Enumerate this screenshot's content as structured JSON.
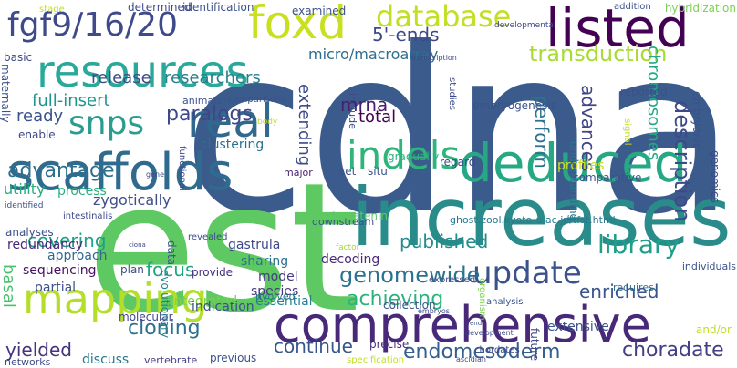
{
  "words": [
    {
      "text": "cdna",
      "color": "#3b5b8c"
    },
    {
      "text": "est",
      "color": "#5ec962"
    },
    {
      "text": "increases",
      "color": "#2a8c8a"
    },
    {
      "text": "comprehensive",
      "color": "#482878"
    },
    {
      "text": "scaffolds",
      "color": "#2f6b8e"
    },
    {
      "text": "deduced",
      "color": "#26a884"
    },
    {
      "text": "resources",
      "color": "#2aa99a"
    },
    {
      "text": "mapping",
      "color": "#b5de2b"
    },
    {
      "text": "listed",
      "color": "#440154"
    },
    {
      "text": "foxd",
      "color": "#c8e020"
    },
    {
      "text": "real",
      "color": "#31688e"
    },
    {
      "text": "fgf9/16/20",
      "color": "#3e4a89"
    },
    {
      "text": "update",
      "color": "#3b528b"
    },
    {
      "text": "indels",
      "color": "#2fb47c"
    },
    {
      "text": "snps",
      "color": "#2a9d8f"
    },
    {
      "text": "database",
      "color": "#c2df23"
    },
    {
      "text": "library",
      "color": "#1f9e89"
    },
    {
      "text": "genomewide",
      "color": "#2c728e"
    },
    {
      "text": "endomesoderm",
      "color": "#355f8d"
    },
    {
      "text": "achieving",
      "color": "#2db27d"
    },
    {
      "text": "description",
      "color": "#3e4989"
    },
    {
      "text": "choradate",
      "color": "#433e85"
    },
    {
      "text": "transduction",
      "color": "#a8db34"
    },
    {
      "text": "paralogs",
      "color": "#3f4788"
    },
    {
      "text": "advantage",
      "color": "#2e6f8e"
    },
    {
      "text": "published",
      "color": "#238a8d"
    },
    {
      "text": "cloning",
      "color": "#2d708e"
    },
    {
      "text": "enriched",
      "color": "#3a548c"
    },
    {
      "text": "continue",
      "color": "#39568c"
    },
    {
      "text": "covering",
      "color": "#1fa187"
    },
    {
      "text": "yielded",
      "color": "#46337f"
    },
    {
      "text": "full-insert",
      "color": "#1f968b"
    },
    {
      "text": "mrna",
      "color": "#481f70"
    },
    {
      "text": "ready",
      "color": "#3b528b"
    },
    {
      "text": "focus",
      "color": "#20a486"
    },
    {
      "text": "total",
      "color": "#440154"
    },
    {
      "text": "micro/macroarray",
      "color": "#2e6e8e"
    },
    {
      "text": "5'-ends",
      "color": "#3f4889"
    },
    {
      "text": "release",
      "color": "#3e4c8a"
    },
    {
      "text": "researchers",
      "color": "#277f8e"
    },
    {
      "text": "perform",
      "color": "#2c728e"
    },
    {
      "text": "advances",
      "color": "#414487"
    },
    {
      "text": "chromosomes",
      "color": "#22a884"
    },
    {
      "text": "extending",
      "color": "#3e4a89"
    },
    {
      "text": "basal",
      "color": "#4ac16d"
    },
    {
      "text": "zygotically",
      "color": "#3d4e8a"
    },
    {
      "text": "clustering",
      "color": "#2c728e"
    },
    {
      "text": "utility",
      "color": "#29af7f"
    },
    {
      "text": "process",
      "color": "#29af7f"
    },
    {
      "text": "sequencing",
      "color": "#471063"
    },
    {
      "text": "redundancy",
      "color": "#482576"
    },
    {
      "text": "approach",
      "color": "#31688e"
    },
    {
      "text": "analyses",
      "color": "#3b528b"
    },
    {
      "text": "partial",
      "color": "#3b518b"
    },
    {
      "text": "integrated",
      "color": "#7ad151"
    },
    {
      "text": "gastrula",
      "color": "#3e4989"
    },
    {
      "text": "sharing",
      "color": "#2c728e"
    },
    {
      "text": "decoding",
      "color": "#482878"
    },
    {
      "text": "model",
      "color": "#443983"
    },
    {
      "text": "species",
      "color": "#453781"
    },
    {
      "text": "essential",
      "color": "#26828e"
    },
    {
      "text": "involved",
      "color": "#2a788e"
    },
    {
      "text": "indication",
      "color": "#3d4d8a"
    },
    {
      "text": "plan",
      "color": "#3e4c8a"
    },
    {
      "text": "provide",
      "color": "#46307e"
    },
    {
      "text": "molecular",
      "color": "#3e4989"
    },
    {
      "text": "networks",
      "color": "#3e4989"
    },
    {
      "text": "discuss",
      "color": "#2a788e"
    },
    {
      "text": "vertebrate",
      "color": "#433e85"
    },
    {
      "text": "previous",
      "color": "#3b528b"
    },
    {
      "text": "precise",
      "color": "#472d7b"
    },
    {
      "text": "specification",
      "color": "#c2df23"
    },
    {
      "text": "ascidian",
      "color": "#3e4989"
    },
    {
      "text": "extensive",
      "color": "#3b528b"
    },
    {
      "text": "collection",
      "color": "#3b528b"
    },
    {
      "text": "requires",
      "color": "#2d708e"
    },
    {
      "text": "analysis",
      "color": "#3b528b"
    },
    {
      "text": "embryos",
      "color": "#3e4c8a"
    },
    {
      "text": "expressed",
      "color": "#3e4989"
    },
    {
      "text": "downstream",
      "color": "#3b528b"
    },
    {
      "text": "factor",
      "color": "#a0da39"
    },
    {
      "text": "beta-catenin",
      "color": "#5ec962"
    },
    {
      "text": "ghost.zool.kyoto-u.ac.jp/tfst.html",
      "color": "#2a788e"
    },
    {
      "text": "revealed",
      "color": "#3e4989"
    },
    {
      "text": "data",
      "color": "#3b528b"
    },
    {
      "text": "intestinalis",
      "color": "#3e4c8a"
    },
    {
      "text": "ciona",
      "color": "#3e4989"
    },
    {
      "text": "evolutionary",
      "color": "#26828e"
    },
    {
      "text": "functional",
      "color": "#3e4989"
    },
    {
      "text": "major",
      "color": "#481f70"
    },
    {
      "text": "set",
      "color": "#3b528b"
    },
    {
      "text": "situ",
      "color": "#3b528b"
    },
    {
      "text": "regard",
      "color": "#3e4989"
    },
    {
      "text": "profiles",
      "color": "#c8e020"
    },
    {
      "text": "comparative",
      "color": "#3b528b"
    },
    {
      "text": "enable",
      "color": "#3e4989"
    },
    {
      "text": "genomics",
      "color": "#3e4989"
    },
    {
      "text": "embryonic",
      "color": "#3b528b"
    },
    {
      "text": "reported",
      "color": "#3b528b"
    },
    {
      "text": "understanding",
      "color": "#2c728e"
    },
    {
      "text": "signal",
      "color": "#c2df23"
    },
    {
      "text": "organism",
      "color": "#7ad151"
    },
    {
      "text": "chordates",
      "color": "#3e4989"
    },
    {
      "text": "individuals",
      "color": "#3b528b"
    },
    {
      "text": "and/or",
      "color": "#c2df23"
    },
    {
      "text": "future",
      "color": "#3e4989"
    },
    {
      "text": "embryogenesis",
      "color": "#3b528b"
    },
    {
      "text": "gradually",
      "color": "#2db27d"
    },
    {
      "text": "studies",
      "color": "#3e4989"
    },
    {
      "text": "transcription",
      "color": "#3e4989"
    },
    {
      "text": "developmental",
      "color": "#3e4989"
    },
    {
      "text": "addition",
      "color": "#3b528b"
    },
    {
      "text": "hybridization",
      "color": "#7ad151"
    },
    {
      "text": "identification",
      "color": "#3b528b"
    },
    {
      "text": "determined",
      "color": "#3e4989"
    },
    {
      "text": "examined",
      "color": "#3b528b"
    },
    {
      "text": "stage",
      "color": "#c2df23"
    },
    {
      "text": "basic",
      "color": "#3e4989"
    },
    {
      "text": "maternally",
      "color": "#3b528b"
    },
    {
      "text": "include",
      "color": "#3e4989"
    },
    {
      "text": "animals",
      "color": "#3b528b"
    },
    {
      "text": "comparisons",
      "color": "#3b528b"
    },
    {
      "text": "body",
      "color": "#c2df23"
    },
    {
      "text": "gene",
      "color": "#3e4989"
    },
    {
      "text": "identified",
      "color": "#3b528b"
    },
    {
      "text": "development",
      "color": "#3e4989"
    },
    {
      "text": "end",
      "color": "#3b528b"
    }
  ]
}
